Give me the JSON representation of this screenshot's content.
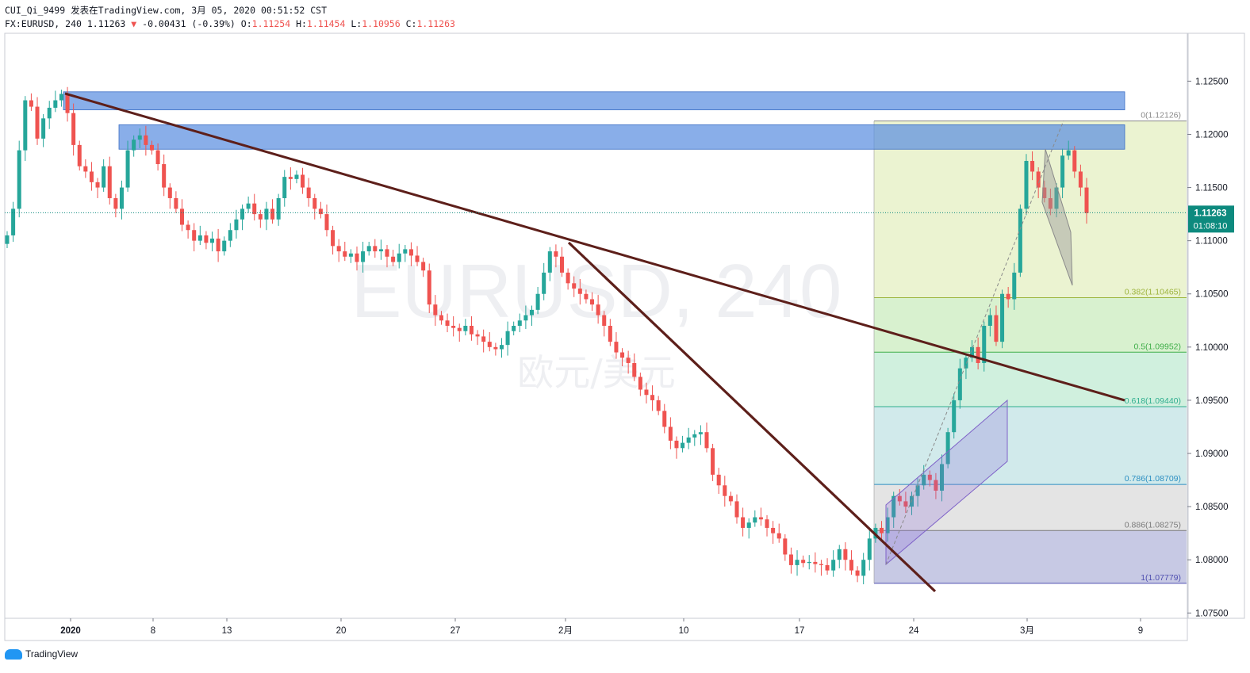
{
  "header": {
    "line1": "CUI_Qi_9499 发表在TradingView.com, 3月 05, 2020 00:51:52 CST",
    "symbol": "FX:EURUSD, 240",
    "last": "1.11263",
    "arrow": "▼",
    "change": "-0.00431 (-0.39%)",
    "o_label": "O:",
    "o_value": "1.11254",
    "h_label": "H:",
    "h_value": "1.11454",
    "l_label": "L:",
    "l_value": "1.10956",
    "c_label": "C:",
    "c_value": "1.11263"
  },
  "watermark": {
    "main": "EURUSD, 240",
    "sub": "欧元/美元"
  },
  "footer": {
    "brand": "TradingView"
  },
  "colors": {
    "up": "#26a69a",
    "down": "#ef5350",
    "trendline": "#5d1f1a",
    "zone": "#5b8fe0",
    "price_label_bg": "#0d8a7e"
  },
  "chart_data": {
    "type": "candlestick",
    "symbol": "EURUSD",
    "interval": "240",
    "ylim": [
      1.0745,
      1.1295
    ],
    "y_ticks": [
      "1.12500",
      "1.12000",
      "1.11500",
      "1.11000",
      "1.10500",
      "1.10000",
      "1.09500",
      "1.09000",
      "1.08500",
      "1.08000",
      "1.07500"
    ],
    "x_ticks": [
      "2020",
      "8",
      "13",
      "20",
      "27",
      "2月",
      "10",
      "17",
      "24",
      "3月",
      "9"
    ],
    "last_price_label": "1.11263",
    "countdown_label": "01:08:10",
    "last_price": 1.11263,
    "fib_levels": [
      {
        "label": "0(1.12126)",
        "value": 1.12126
      },
      {
        "label": "0.382(1.10465)",
        "value": 1.10465
      },
      {
        "label": "0.5(1.09952)",
        "value": 1.09952
      },
      {
        "label": "0.618(1.09440)",
        "value": 1.0944
      },
      {
        "label": "0.786(1.08709)",
        "value": 1.08709
      },
      {
        "label": "0.886(1.08275)",
        "value": 1.08275
      },
      {
        "label": "1(1.07779)",
        "value": 1.07779
      }
    ],
    "resistance_zones": [
      {
        "from": 1.124,
        "to": 1.1223
      },
      {
        "from": 1.1209,
        "to": 1.1186
      }
    ],
    "path_points": [
      [
        1.1105,
        1.113,
        1.1185,
        1.1232,
        1.1226,
        1.1196,
        1.1215,
        1.1225,
        1.1232,
        1.1238,
        1.122,
        1.119,
        1.117,
        1.1165,
        1.1155,
        1.115,
        1.117,
        1.114,
        1.113,
        1.115,
        1.1185,
        1.1195,
        1.1199,
        1.119,
        1.1185,
        1.1172,
        1.115,
        1.114,
        1.113,
        1.1115,
        1.111,
        1.11,
        1.1105,
        1.1098,
        1.1102,
        1.109,
        1.11,
        1.111,
        1.112,
        1.113,
        1.1135,
        1.1125,
        1.112,
        1.113,
        1.112,
        1.114,
        1.116,
        1.1158,
        1.1162,
        1.115,
        1.114,
        1.113,
        1.1125,
        1.111,
        1.1095,
        1.109,
        1.1085,
        1.1088,
        1.108,
        1.109,
        1.1095,
        1.109,
        1.1092,
        1.1085,
        1.108,
        1.1088,
        1.1092,
        1.1086,
        1.108,
        1.1072,
        1.104,
        1.103,
        1.1025,
        1.102,
        1.1018,
        1.1015,
        1.102,
        1.1012,
        1.101,
        1.1005,
        1.1,
        1.0998,
        1.1002,
        1.1015,
        1.102,
        1.1025,
        1.103,
        1.1035,
        1.105,
        1.107,
        1.109,
        1.1085,
        1.107,
        1.106,
        1.1055,
        1.105,
        1.1045,
        1.104,
        1.103,
        1.102,
        1.1005,
        1.0995,
        1.099,
        1.0985,
        1.0972,
        1.096,
        1.0955,
        1.095,
        1.094,
        1.0925,
        1.0912,
        1.0905,
        1.091,
        1.0915,
        1.0918,
        1.092,
        1.0905,
        1.088,
        1.087,
        1.086,
        1.0855,
        1.084,
        1.083,
        1.0835,
        1.084,
        1.0838,
        1.083,
        1.0825,
        1.082,
        1.0805,
        1.0795,
        1.08,
        1.0797,
        1.0798,
        1.0796,
        1.0795,
        1.079,
        1.08,
        1.081,
        1.08,
        1.079,
        1.0785,
        1.08,
        1.082,
        1.083,
        1.0825,
        1.084,
        1.086,
        1.0855,
        1.085,
        1.086,
        1.087,
        1.088,
        1.0875,
        1.0865,
        1.089,
        1.092,
        1.095,
        1.098,
        1.099,
        1.1,
        1.0985,
        1.102,
        1.103,
        1.1005,
        1.105,
        1.1045,
        1.107,
        1.113,
        1.1175,
        1.1165,
        1.115,
        1.114,
        1.113,
        1.115,
        1.118,
        1.1185,
        1.1165,
        1.115,
        1.1126
      ]
    ]
  }
}
